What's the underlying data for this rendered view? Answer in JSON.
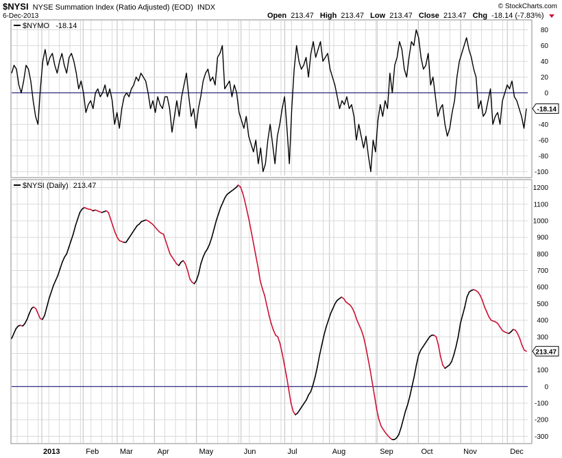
{
  "header": {
    "symbol": "$NYSI",
    "description": "NYSE Summation Index (Ratio Adjusted) (EOD)",
    "exchange": "INDX",
    "date": "6-Dec-2013",
    "watermark": "© StockCharts.com",
    "ohlc": {
      "open_label": "Open",
      "open_value": "213.47",
      "high_label": "High",
      "high_value": "213.47",
      "low_label": "Low",
      "low_value": "213.47",
      "close_label": "Close",
      "close_value": "213.47",
      "chg_label": "Chg",
      "chg_value": "-18.14 (-7.83%)"
    }
  },
  "colors": {
    "price_line": "#000000",
    "down_line": "#cc1133",
    "grid": "#d9d9d9",
    "zero_line": "#000066",
    "chg_arrow": "#cc1133"
  },
  "chart_data": [
    {
      "type": "line",
      "panel": "upper",
      "legend": "$NYMO",
      "legend_value": "-18.14",
      "current_value_label": "-18.14",
      "ylim": [
        -105,
        90
      ],
      "y_ticks": [
        80,
        60,
        40,
        20,
        0,
        -20,
        -40,
        -60,
        -80,
        -100
      ],
      "zero_line": 0,
      "grid": true,
      "x_labels": [
        "2013",
        "Feb",
        "Mar",
        "Apr",
        "May",
        "Jun",
        "Jul",
        "Aug",
        "Sep",
        "Oct",
        "Nov",
        "Dec"
      ],
      "series": [
        {
          "values": [
            25,
            35,
            30,
            10,
            0,
            15,
            35,
            30,
            15,
            -10,
            -30,
            -40,
            5,
            40,
            55,
            35,
            45,
            50,
            35,
            25,
            40,
            50,
            35,
            25,
            45,
            50,
            40,
            25,
            5,
            15,
            0,
            -25,
            -15,
            -10,
            -20,
            0,
            5,
            -5,
            0,
            10,
            -5,
            5,
            -10,
            -40,
            -25,
            -45,
            -20,
            -5,
            0,
            -5,
            5,
            10,
            20,
            15,
            25,
            20,
            15,
            0,
            -20,
            -10,
            -25,
            -5,
            -15,
            -20,
            -5,
            -5,
            -20,
            -50,
            -30,
            -10,
            -30,
            -5,
            10,
            25,
            -5,
            -30,
            -20,
            -45,
            -20,
            -5,
            15,
            25,
            30,
            15,
            20,
            10,
            45,
            50,
            60,
            5,
            10,
            15,
            -5,
            10,
            0,
            -25,
            -35,
            -45,
            -30,
            -55,
            -65,
            -75,
            -60,
            -90,
            -70,
            -100,
            -90,
            -60,
            -40,
            -65,
            -90,
            -55,
            -40,
            -20,
            -5,
            -45,
            -90,
            -20,
            30,
            60,
            40,
            30,
            35,
            45,
            20,
            50,
            65,
            45,
            55,
            65,
            40,
            45,
            50,
            30,
            20,
            10,
            -5,
            -20,
            -10,
            -15,
            -5,
            -20,
            -15,
            -30,
            -60,
            -40,
            -55,
            -70,
            -55,
            -80,
            -100,
            -60,
            -75,
            -35,
            -15,
            -30,
            -10,
            -20,
            25,
            0,
            35,
            45,
            65,
            55,
            30,
            20,
            45,
            65,
            60,
            80,
            70,
            45,
            30,
            35,
            50,
            10,
            20,
            -5,
            -30,
            -20,
            -15,
            -40,
            -55,
            -45,
            -25,
            -10,
            20,
            40,
            50,
            60,
            70,
            55,
            45,
            30,
            20,
            -20,
            -10,
            -30,
            -25,
            -10,
            5,
            -40,
            -30,
            -25,
            -40,
            -10,
            0,
            10,
            5,
            15,
            -5,
            -10,
            -20,
            -30,
            -45,
            -20
          ]
        }
      ]
    },
    {
      "type": "line",
      "panel": "lower",
      "legend": "$NYSI (Daily)",
      "legend_value": "213.47",
      "current_value_label": "213.47",
      "ylim": [
        -340,
        1240
      ],
      "y_ticks": [
        1200,
        1100,
        1000,
        900,
        800,
        700,
        600,
        500,
        400,
        300,
        200,
        100,
        0,
        -100,
        -200,
        -300
      ],
      "zero_line": 0,
      "grid": true,
      "x_labels": [
        "2013",
        "Feb",
        "Mar",
        "Apr",
        "May",
        "Jun",
        "Jul",
        "Aug",
        "Sep",
        "Oct",
        "Nov",
        "Dec"
      ],
      "series": [
        {
          "values": [
            290,
            320,
            350,
            365,
            370,
            365,
            380,
            405,
            440,
            470,
            480,
            470,
            440,
            410,
            405,
            430,
            480,
            530,
            570,
            610,
            640,
            670,
            710,
            750,
            780,
            800,
            840,
            880,
            920,
            970,
            1010,
            1050,
            1070,
            1080,
            1075,
            1070,
            1068,
            1060,
            1065,
            1060,
            1055,
            1050,
            1055,
            1060,
            1050,
            1010,
            970,
            930,
            900,
            880,
            875,
            870,
            870,
            890,
            910,
            930,
            950,
            970,
            980,
            995,
            1000,
            1005,
            1000,
            990,
            980,
            965,
            950,
            935,
            925,
            920,
            880,
            840,
            800,
            780,
            760,
            740,
            730,
            750,
            760,
            740,
            700,
            650,
            630,
            620,
            640,
            680,
            740,
            780,
            810,
            830,
            860,
            900,
            950,
            1000,
            1040,
            1080,
            1110,
            1140,
            1160,
            1170,
            1180,
            1190,
            1200,
            1215,
            1205,
            1170,
            1120,
            1060,
            1000,
            930,
            860,
            790,
            720,
            640,
            590,
            550,
            490,
            430,
            380,
            340,
            310,
            300,
            260,
            200,
            130,
            60,
            -20,
            -100,
            -150,
            -170,
            -160,
            -140,
            -120,
            -100,
            -80,
            -50,
            -30,
            10,
            60,
            120,
            190,
            250,
            310,
            360,
            400,
            440,
            470,
            500,
            520,
            530,
            540,
            530,
            510,
            500,
            490,
            470,
            440,
            400,
            370,
            340,
            300,
            240,
            170,
            100,
            20,
            -60,
            -140,
            -200,
            -240,
            -260,
            -280,
            -295,
            -310,
            -320,
            -320,
            -310,
            -290,
            -250,
            -200,
            -150,
            -110,
            -60,
            0,
            60,
            130,
            190,
            220,
            240,
            260,
            280,
            300,
            310,
            310,
            300,
            250,
            180,
            130,
            110,
            120,
            130,
            150,
            190,
            240,
            300,
            380,
            430,
            480,
            540,
            570,
            580,
            585,
            580,
            570,
            550,
            520,
            480,
            450,
            420,
            400,
            395,
            390,
            380,
            360,
            340,
            330,
            325,
            320,
            330,
            345,
            340,
            320,
            290,
            250,
            220,
            213
          ]
        }
      ]
    }
  ]
}
